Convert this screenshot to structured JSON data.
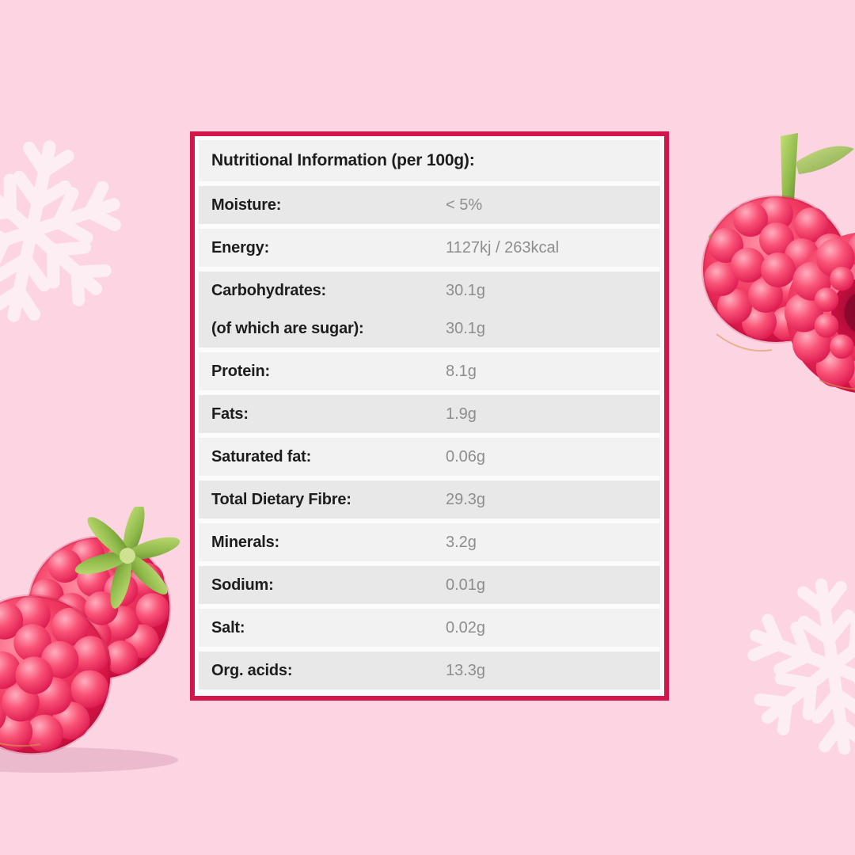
{
  "table": {
    "title": "Nutritional Information (per 100g):",
    "rows": [
      {
        "label": "Moisture:",
        "value": "< 5%"
      },
      {
        "label": "Energy:",
        "value": "1127kj / 263kcal"
      },
      {
        "label": "Carbohydrates:",
        "value": "30.1g",
        "label2": "(of which are sugar):",
        "value2": "30.1g"
      },
      {
        "label": "Protein:",
        "value": "8.1g"
      },
      {
        "label": "Fats:",
        "value": "1.9g"
      },
      {
        "label": "Saturated fat:",
        "value": "0.06g"
      },
      {
        "label": "Total Dietary Fibre:",
        "value": "29.3g"
      },
      {
        "label": "Minerals:",
        "value": "3.2g"
      },
      {
        "label": "Sodium:",
        "value": "0.01g"
      },
      {
        "label": "Salt:",
        "value": "0.02g"
      },
      {
        "label": "Org. acids:",
        "value": "13.3g"
      }
    ]
  },
  "decor": {
    "snowflakes": [
      "snowflake-icon-left",
      "snowflake-icon-bottom-right"
    ],
    "raspberries": [
      "raspberry-cluster-top-right",
      "raspberry-cluster-bottom-left"
    ]
  },
  "theme": {
    "background": "#fcd4e2",
    "card_bg": "#fbfbfb",
    "border": "#d2154a",
    "row_dark": "#e8e8e8",
    "row_light": "#f2f2f2",
    "label_color": "#1d1d1d",
    "value_color": "#8d8d8d",
    "snowflake": "#fdeef4",
    "berry_red": "#d8114a",
    "leaf_green": "#8fb94a"
  }
}
